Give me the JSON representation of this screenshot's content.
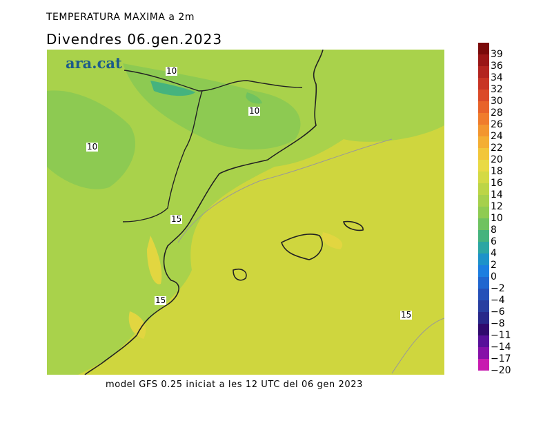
{
  "header": {
    "title": "TEMPERATURA MAXIMA a 2m",
    "subtitle": "Divendres  06.gen.2023"
  },
  "footer": {
    "text": "model GFS 0.25 iniciat a les 12 UTC del 06 gen 2023"
  },
  "logo": {
    "text": "ara.cat",
    "color": "#1d5b8a"
  },
  "isolines": [
    {
      "text": "10"
    },
    {
      "text": "10"
    },
    {
      "text": "10"
    },
    {
      "text": "15"
    },
    {
      "text": "15"
    },
    {
      "text": "15"
    }
  ],
  "legend": {
    "labels": [
      "39",
      "36",
      "34",
      "32",
      "30",
      "28",
      "26",
      "24",
      "22",
      "20",
      "18",
      "16",
      "14",
      "12",
      "10",
      "8",
      "6",
      "4",
      "2",
      "0",
      "−2",
      "−4",
      "−6",
      "−8",
      "−11",
      "−14",
      "−17",
      "−20"
    ],
    "colors": [
      "#7a0a0a",
      "#9a1616",
      "#b3241f",
      "#c83424",
      "#db4a28",
      "#e8632a",
      "#f07c2c",
      "#f3962f",
      "#f4ae33",
      "#f2c63a",
      "#e9da44",
      "#d4da44",
      "#bcd546",
      "#a6d04c",
      "#8fcb52",
      "#6fc260",
      "#45b37e",
      "#2ca6a3",
      "#1d92c9",
      "#1c7ee0",
      "#2066cf",
      "#2550b8",
      "#283ea0",
      "#28288a",
      "#300a6e",
      "#58109a",
      "#8610a8",
      "#c81ab0"
    ]
  },
  "map_colors": {
    "sea": "#cfd63e",
    "land_green": "#a9d24b",
    "mountain_green": "#8dca52",
    "highlight": "#e2d640"
  }
}
